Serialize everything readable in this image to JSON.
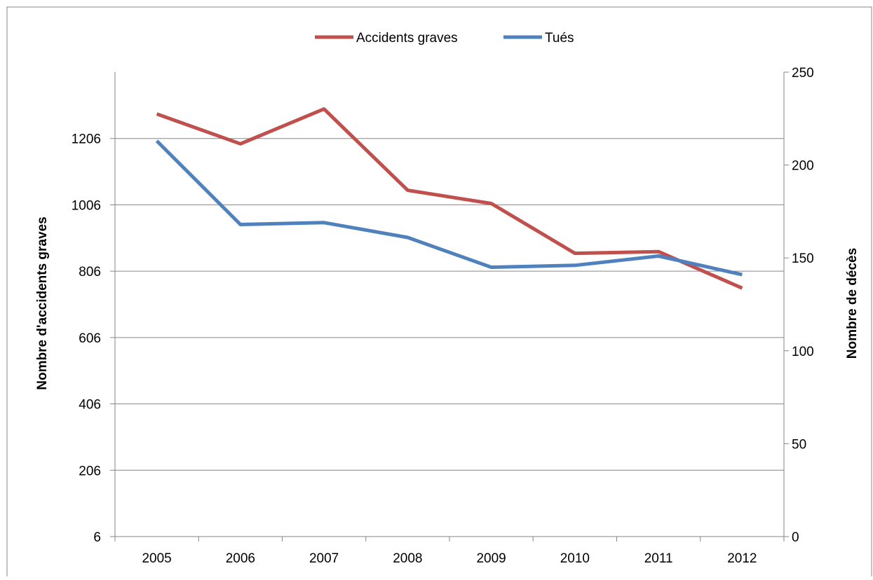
{
  "chart_data": {
    "type": "line",
    "categories": [
      "2005",
      "2006",
      "2007",
      "2008",
      "2009",
      "2010",
      "2011",
      "2012"
    ],
    "series": [
      {
        "name": "Accidents graves",
        "axis": "left",
        "color": "#C0504D",
        "values": [
          1280,
          1190,
          1295,
          1050,
          1010,
          860,
          865,
          755
        ]
      },
      {
        "name": "Tués",
        "axis": "right",
        "color": "#4F81BD",
        "values": [
          213,
          168,
          169,
          161,
          145,
          146,
          151,
          141
        ]
      }
    ],
    "ylabel": "Nombre d'accidents graves",
    "y2label": "Nombre de décès",
    "ylim": [
      6,
      1406
    ],
    "yticks": [
      "6",
      "206",
      "406",
      "606",
      "806",
      "1006",
      "1206"
    ],
    "y2lim": [
      0,
      250
    ],
    "y2ticks": [
      "0",
      "50",
      "100",
      "150",
      "200",
      "250"
    ],
    "grid": true,
    "legend_position": "top-center"
  }
}
